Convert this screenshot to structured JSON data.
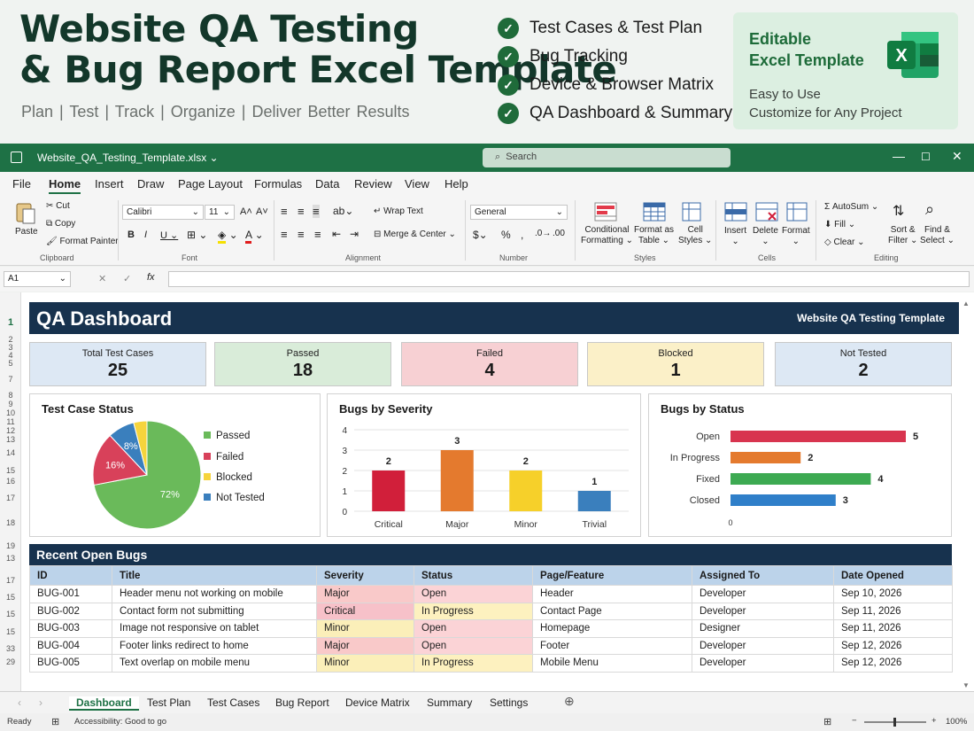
{
  "promo": {
    "title_line1": "Website QA Testing",
    "title_line2": "& Bug Report Excel Template",
    "tagline": "Plan  |  Test  |  Track  |  Organize  |  Deliver Better Results",
    "features": [
      "Test Cases & Test Plan",
      "Bug Tracking",
      "Device & Browser Matrix",
      "QA Dashboard & Summary"
    ],
    "card_title_1": "Editable",
    "card_title_2": "Excel Template",
    "card_sub_1": "Easy to Use",
    "card_sub_2": "Customize for Any Project",
    "logo_letter": "X"
  },
  "window": {
    "filename": "Website_QA_Testing_Template.xlsx",
    "search_placeholder": "Search"
  },
  "menu": [
    "File",
    "Home",
    "Insert",
    "Draw",
    "Page Layout",
    "Formulas",
    "Data",
    "Review",
    "View",
    "Help"
  ],
  "ribbon": {
    "paste": "Paste",
    "cut": "Cut",
    "copy": "Copy",
    "format_painter": "Format Painter",
    "clipboard": "Clipboard",
    "font_name": "Calibri",
    "font_size": "11",
    "font": "Font",
    "wrap_text": "Wrap Text",
    "merge_center": "Merge & Center",
    "alignment": "Alignment",
    "number_format": "General",
    "number": "Number",
    "conditional_1": "Conditional",
    "conditional_2": "Formatting",
    "format_table_1": "Format as",
    "format_table_2": "Table",
    "cell_styles_1": "Cell",
    "cell_styles_2": "Styles",
    "styles": "Styles",
    "insert": "Insert",
    "delete": "Delete",
    "format": "Format",
    "cells": "Cells",
    "autosum": "AutoSum",
    "fill": "Fill",
    "clear": "Clear",
    "sort_1": "Sort &",
    "sort_2": "Filter",
    "find_1": "Find &",
    "find_2": "Select",
    "editing": "Editing"
  },
  "formula_bar": {
    "name_box": "A1",
    "fx": "fx"
  },
  "dashboard": {
    "title": "QA Dashboard",
    "subtitle": "Website QA Testing Template",
    "kpis": [
      {
        "label": "Total Test Cases",
        "value": "25",
        "color": "#dde8f4"
      },
      {
        "label": "Passed",
        "value": "18",
        "color": "#d9ecd9"
      },
      {
        "label": "Failed",
        "value": "4",
        "color": "#f7d0d3"
      },
      {
        "label": "Blocked",
        "value": "1",
        "color": "#fbf0c8"
      },
      {
        "label": "Not Tested",
        "value": "2",
        "color": "#dde8f4"
      }
    ]
  },
  "chart_data": [
    {
      "type": "pie",
      "title": "Test Case Status",
      "slices": [
        {
          "name": "Passed",
          "percent": 72,
          "label": "72%",
          "color": "#6aba5a"
        },
        {
          "name": "Failed",
          "percent": 16,
          "label": "16%",
          "color": "#d8415a"
        },
        {
          "name": "Blocked",
          "percent": 4,
          "label": "",
          "color": "#f6d43c"
        },
        {
          "name": "Not Tested",
          "percent": 8,
          "label": "8%",
          "color": "#3a7fbd"
        }
      ],
      "legend_position": "right"
    },
    {
      "type": "bar",
      "title": "Bugs by Severity",
      "categories": [
        "Critical",
        "Major",
        "Minor",
        "Trivial"
      ],
      "values": [
        2,
        3,
        2,
        1
      ],
      "colors": [
        "#d11f3a",
        "#e47a2e",
        "#f6d02a",
        "#3a7fbd"
      ],
      "yticks": [
        "0",
        "1",
        "2",
        "3",
        "4"
      ],
      "ylim": [
        0,
        4
      ],
      "grid": true
    },
    {
      "type": "bar",
      "orientation": "horizontal",
      "title": "Bugs by Status",
      "categories": [
        "Open",
        "In Progress",
        "Fixed",
        "Closed"
      ],
      "values": [
        5,
        2,
        4,
        3
      ],
      "colors": [
        "#d8344f",
        "#e47a2e",
        "#3daa52",
        "#2f7fc9"
      ],
      "xtick": "0",
      "xlim": [
        0,
        5
      ]
    }
  ],
  "bugs": {
    "title": "Recent Open Bugs",
    "columns": [
      "ID",
      "Title",
      "Severity",
      "Status",
      "Page/Feature",
      "Assigned To",
      "Date Opened"
    ],
    "rows": [
      [
        "BUG-001",
        "Header menu not working on mobile",
        "Major",
        "Open",
        "Header",
        "Developer",
        "Sep 10, 2026"
      ],
      [
        "BUG-002",
        "Contact form not submitting",
        "Critical",
        "In Progress",
        "Contact Page",
        "Developer",
        "Sep 11, 2026"
      ],
      [
        "BUG-003",
        "Image not responsive on tablet",
        "Minor",
        "Open",
        "Homepage",
        "Designer",
        "Sep 11, 2026"
      ],
      [
        "BUG-004",
        "Footer links redirect to home",
        "Major",
        "Open",
        "Footer",
        "Developer",
        "Sep 12, 2026"
      ],
      [
        "BUG-005",
        "Text overlap on mobile menu",
        "Minor",
        "In Progress",
        "Mobile Menu",
        "Developer",
        "Sep 12, 2026"
      ]
    ]
  },
  "row_numbers": [
    "1",
    "2",
    "3",
    "4",
    "5",
    "7",
    "8",
    "9",
    "10",
    "11",
    "12",
    "13",
    "14",
    "15",
    "16",
    "17",
    "18",
    "19",
    "13",
    "17",
    "15",
    "15",
    "15",
    "33",
    "29"
  ],
  "sheet_tabs": [
    "Dashboard",
    "Test Plan",
    "Test Cases",
    "Bug Report",
    "Device Matrix",
    "Summary",
    "Settings"
  ],
  "status": {
    "ready": "Ready",
    "accessibility": "Accessibility: Good to go",
    "zoom": "100%"
  }
}
